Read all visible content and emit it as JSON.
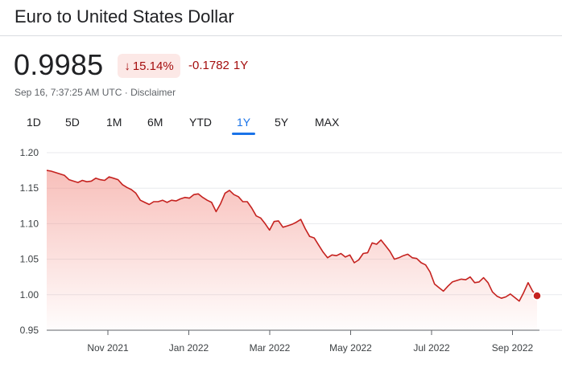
{
  "header": {
    "title": "Euro to United States Dollar"
  },
  "quote": {
    "price": "0.9985",
    "change_percent": "15.14%",
    "change_arrow": "down-arrow-icon",
    "change_abs": "-0.1782",
    "change_period": "1Y",
    "timestamp": "Sep 16, 7:37:25 AM UTC",
    "separator": " · ",
    "disclaimer": "Disclaimer",
    "colors": {
      "negative": "#a50e0e",
      "negative_bg": "#fce8e6",
      "accent": "#1a73e8"
    }
  },
  "tabs": [
    {
      "label": "1D",
      "active": false
    },
    {
      "label": "5D",
      "active": false
    },
    {
      "label": "1M",
      "active": false
    },
    {
      "label": "6M",
      "active": false
    },
    {
      "label": "YTD",
      "active": false
    },
    {
      "label": "1Y",
      "active": true
    },
    {
      "label": "5Y",
      "active": false
    },
    {
      "label": "MAX",
      "active": false
    }
  ],
  "chart_data": {
    "type": "area",
    "title": "",
    "xlabel": "",
    "ylabel": "",
    "ylim": [
      0.95,
      1.2
    ],
    "yticks": [
      "1.20",
      "1.15",
      "1.10",
      "1.05",
      "1.00",
      "0.95"
    ],
    "xticks": [
      "Nov 2021",
      "Jan 2022",
      "Mar 2022",
      "May 2022",
      "Jul 2022",
      "Sep 2022"
    ],
    "grid": true,
    "line_color": "#c5221f",
    "series": [
      {
        "values": [
          1.175,
          1.174,
          1.172,
          1.17,
          1.168,
          1.162,
          1.16,
          1.158,
          1.161,
          1.159,
          1.16,
          1.164,
          1.162,
          1.161,
          1.166,
          1.164,
          1.162,
          1.155,
          1.151,
          1.148,
          1.143,
          1.133,
          1.13,
          1.127,
          1.131,
          1.131,
          1.133,
          1.13,
          1.133,
          1.132,
          1.135,
          1.137,
          1.136,
          1.141,
          1.142,
          1.137,
          1.133,
          1.13,
          1.117,
          1.128,
          1.143,
          1.147,
          1.141,
          1.138,
          1.131,
          1.131,
          1.122,
          1.111,
          1.108,
          1.1,
          1.091,
          1.103,
          1.104,
          1.095,
          1.097,
          1.099,
          1.102,
          1.106,
          1.093,
          1.082,
          1.08,
          1.07,
          1.06,
          1.052,
          1.056,
          1.055,
          1.058,
          1.053,
          1.056,
          1.045,
          1.049,
          1.058,
          1.059,
          1.073,
          1.071,
          1.077,
          1.069,
          1.061,
          1.05,
          1.052,
          1.055,
          1.057,
          1.052,
          1.051,
          1.045,
          1.042,
          1.032,
          1.015,
          1.01,
          1.005,
          1.012,
          1.018,
          1.02,
          1.022,
          1.021,
          1.025,
          1.017,
          1.018,
          1.024,
          1.017,
          1.004,
          0.998,
          0.995,
          0.997,
          1.001,
          0.996,
          0.991,
          1.003,
          1.017,
          1.005,
          0.9985
        ]
      }
    ]
  }
}
